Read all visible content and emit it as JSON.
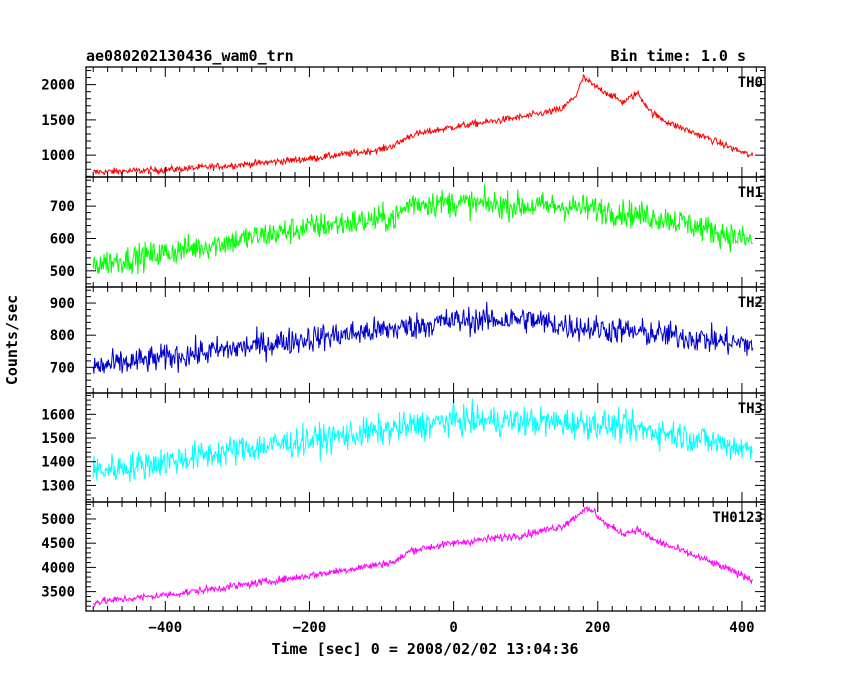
{
  "header": {
    "title": "ae080202130436_wam0_trn",
    "bin_time": "Bin time: 1.0 s"
  },
  "axes": {
    "xlabel": "Time [sec] 0 = 2008/02/02 13:04:36",
    "ylabel": "Counts/sec"
  },
  "chart_data": {
    "type": "line",
    "xlim": [
      -510,
      432
    ],
    "xticks": [
      -400,
      -200,
      0,
      200,
      400
    ],
    "xtick_labels": [
      "−400",
      "−200",
      "0",
      "200",
      "400"
    ],
    "x_range_of_data": [
      -500,
      415
    ],
    "panels": [
      {
        "name": "TH0",
        "color": "#ff0000",
        "ylim": [
          690,
          2250
        ],
        "yticks": [
          1000,
          1500,
          2000
        ],
        "ytick_labels": [
          "1000",
          "1500",
          "2000"
        ],
        "noise": 35,
        "trend": [
          [
            -500,
            760
          ],
          [
            -400,
            790
          ],
          [
            -300,
            860
          ],
          [
            -200,
            950
          ],
          [
            -100,
            1080
          ],
          [
            -80,
            1150
          ],
          [
            -60,
            1280
          ],
          [
            0,
            1400
          ],
          [
            100,
            1550
          ],
          [
            150,
            1650
          ],
          [
            170,
            1850
          ],
          [
            180,
            2100
          ],
          [
            195,
            1980
          ],
          [
            210,
            1900
          ],
          [
            235,
            1750
          ],
          [
            255,
            1880
          ],
          [
            275,
            1600
          ],
          [
            300,
            1450
          ],
          [
            350,
            1250
          ],
          [
            415,
            980
          ]
        ]
      },
      {
        "name": "TH1",
        "color": "#00ff00",
        "ylim": [
          450,
          790
        ],
        "yticks": [
          500,
          600,
          700
        ],
        "ytick_labels": [
          "500",
          "600",
          "700"
        ],
        "noise": 30,
        "trend": [
          [
            -500,
            520
          ],
          [
            -400,
            555
          ],
          [
            -300,
            595
          ],
          [
            -200,
            635
          ],
          [
            -100,
            660
          ],
          [
            -80,
            665
          ],
          [
            -60,
            710
          ],
          [
            0,
            710
          ],
          [
            100,
            700
          ],
          [
            150,
            700
          ],
          [
            200,
            690
          ],
          [
            300,
            660
          ],
          [
            415,
            590
          ]
        ]
      },
      {
        "name": "TH2",
        "color": "#0000cc",
        "ylim": [
          620,
          950
        ],
        "yticks": [
          700,
          800,
          900
        ],
        "ytick_labels": [
          "700",
          "800",
          "900"
        ],
        "noise": 30,
        "trend": [
          [
            -500,
            700
          ],
          [
            -400,
            730
          ],
          [
            -300,
            760
          ],
          [
            -200,
            790
          ],
          [
            -100,
            815
          ],
          [
            0,
            845
          ],
          [
            100,
            850
          ],
          [
            150,
            830
          ],
          [
            200,
            820
          ],
          [
            300,
            800
          ],
          [
            415,
            770
          ]
        ]
      },
      {
        "name": "TH3",
        "color": "#00ffff",
        "ylim": [
          1230,
          1690
        ],
        "yticks": [
          1300,
          1400,
          1500,
          1600
        ],
        "ytick_labels": [
          "1300",
          "1400",
          "1500",
          "1600"
        ],
        "noise": 45,
        "trend": [
          [
            -500,
            1360
          ],
          [
            -400,
            1400
          ],
          [
            -300,
            1450
          ],
          [
            -200,
            1490
          ],
          [
            -100,
            1530
          ],
          [
            0,
            1575
          ],
          [
            100,
            1570
          ],
          [
            200,
            1560
          ],
          [
            300,
            1520
          ],
          [
            415,
            1450
          ]
        ]
      },
      {
        "name": "TH0123",
        "color": "#ff00ff",
        "ylim": [
          3100,
          5350
        ],
        "yticks": [
          3500,
          4000,
          4500,
          5000
        ],
        "ytick_labels": [
          "3500",
          "4000",
          "4500",
          "5000"
        ],
        "noise": 55,
        "trend": [
          [
            -500,
            3280
          ],
          [
            -400,
            3430
          ],
          [
            -300,
            3620
          ],
          [
            -200,
            3830
          ],
          [
            -100,
            4070
          ],
          [
            -80,
            4120
          ],
          [
            -60,
            4350
          ],
          [
            0,
            4500
          ],
          [
            100,
            4680
          ],
          [
            150,
            4850
          ],
          [
            170,
            5050
          ],
          [
            180,
            5200
          ],
          [
            195,
            5150
          ],
          [
            210,
            4900
          ],
          [
            235,
            4700
          ],
          [
            255,
            4780
          ],
          [
            280,
            4550
          ],
          [
            350,
            4150
          ],
          [
            415,
            3750
          ]
        ]
      }
    ]
  }
}
